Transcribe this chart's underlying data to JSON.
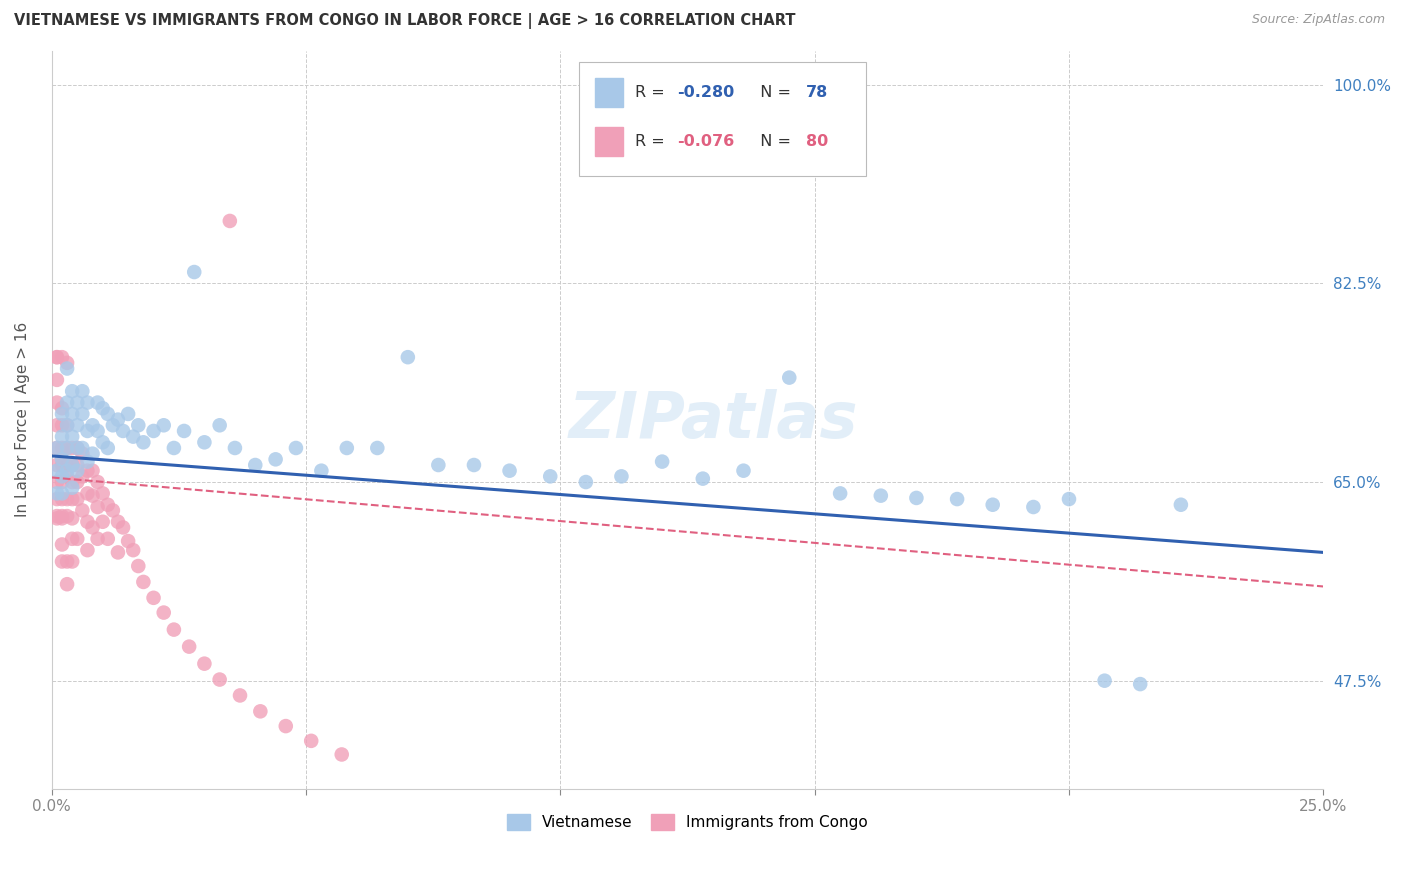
{
  "title": "VIETNAMESE VS IMMIGRANTS FROM CONGO IN LABOR FORCE | AGE > 16 CORRELATION CHART",
  "source": "Source: ZipAtlas.com",
  "ylabel": "In Labor Force | Age > 16",
  "xlim": [
    0.0,
    0.25
  ],
  "ylim": [
    0.38,
    1.03
  ],
  "R_vietnamese": -0.28,
  "N_vietnamese": 78,
  "R_congo": -0.076,
  "N_congo": 80,
  "blue_color": "#a8c8e8",
  "pink_color": "#f0a0b8",
  "blue_line_color": "#3060b0",
  "pink_line_color": "#e06080",
  "watermark": "ZIPatlas",
  "background_color": "#ffffff",
  "grid_color": "#cccccc",
  "title_color": "#333333",
  "ytick_color": "#4080c0",
  "viet_line_y0": 0.673,
  "viet_line_y1": 0.588,
  "congo_line_y0": 0.654,
  "congo_line_y1": 0.558,
  "viet_x": [
    0.001,
    0.001,
    0.001,
    0.002,
    0.002,
    0.002,
    0.002,
    0.002,
    0.003,
    0.003,
    0.003,
    0.003,
    0.003,
    0.004,
    0.004,
    0.004,
    0.004,
    0.004,
    0.005,
    0.005,
    0.005,
    0.005,
    0.006,
    0.006,
    0.006,
    0.007,
    0.007,
    0.007,
    0.008,
    0.008,
    0.009,
    0.009,
    0.01,
    0.01,
    0.011,
    0.011,
    0.012,
    0.013,
    0.014,
    0.015,
    0.016,
    0.017,
    0.018,
    0.02,
    0.022,
    0.024,
    0.026,
    0.028,
    0.03,
    0.033,
    0.036,
    0.04,
    0.044,
    0.048,
    0.053,
    0.058,
    0.064,
    0.07,
    0.076,
    0.083,
    0.09,
    0.098,
    0.105,
    0.112,
    0.12,
    0.128,
    0.136,
    0.145,
    0.155,
    0.163,
    0.17,
    0.178,
    0.185,
    0.193,
    0.2,
    0.207,
    0.214,
    0.222
  ],
  "viet_y": [
    0.68,
    0.66,
    0.64,
    0.71,
    0.69,
    0.67,
    0.655,
    0.64,
    0.75,
    0.72,
    0.7,
    0.68,
    0.66,
    0.73,
    0.71,
    0.69,
    0.665,
    0.645,
    0.72,
    0.7,
    0.68,
    0.66,
    0.73,
    0.71,
    0.68,
    0.72,
    0.695,
    0.668,
    0.7,
    0.675,
    0.72,
    0.695,
    0.715,
    0.685,
    0.71,
    0.68,
    0.7,
    0.705,
    0.695,
    0.71,
    0.69,
    0.7,
    0.685,
    0.695,
    0.7,
    0.68,
    0.695,
    0.835,
    0.685,
    0.7,
    0.68,
    0.665,
    0.67,
    0.68,
    0.66,
    0.68,
    0.68,
    0.76,
    0.665,
    0.665,
    0.66,
    0.655,
    0.65,
    0.655,
    0.668,
    0.653,
    0.66,
    0.742,
    0.64,
    0.638,
    0.636,
    0.635,
    0.63,
    0.628,
    0.635,
    0.475,
    0.472,
    0.63
  ],
  "congo_x": [
    0.001,
    0.001,
    0.001,
    0.001,
    0.001,
    0.001,
    0.001,
    0.001,
    0.001,
    0.001,
    0.001,
    0.002,
    0.002,
    0.002,
    0.002,
    0.002,
    0.002,
    0.002,
    0.002,
    0.002,
    0.002,
    0.002,
    0.003,
    0.003,
    0.003,
    0.003,
    0.003,
    0.003,
    0.003,
    0.003,
    0.004,
    0.004,
    0.004,
    0.004,
    0.004,
    0.004,
    0.004,
    0.005,
    0.005,
    0.005,
    0.005,
    0.005,
    0.006,
    0.006,
    0.006,
    0.007,
    0.007,
    0.007,
    0.007,
    0.008,
    0.008,
    0.008,
    0.009,
    0.009,
    0.009,
    0.01,
    0.01,
    0.011,
    0.011,
    0.012,
    0.013,
    0.013,
    0.014,
    0.015,
    0.016,
    0.017,
    0.018,
    0.02,
    0.022,
    0.024,
    0.027,
    0.03,
    0.033,
    0.037,
    0.041,
    0.046,
    0.051,
    0.057,
    0.035,
    0.003
  ],
  "congo_y": [
    0.68,
    0.665,
    0.65,
    0.635,
    0.618,
    0.7,
    0.72,
    0.74,
    0.76,
    0.76,
    0.62,
    0.68,
    0.665,
    0.65,
    0.635,
    0.618,
    0.7,
    0.715,
    0.595,
    0.58,
    0.76,
    0.62,
    0.68,
    0.665,
    0.655,
    0.635,
    0.62,
    0.7,
    0.58,
    0.56,
    0.68,
    0.665,
    0.65,
    0.635,
    0.618,
    0.6,
    0.58,
    0.68,
    0.665,
    0.65,
    0.635,
    0.6,
    0.675,
    0.655,
    0.625,
    0.66,
    0.64,
    0.615,
    0.59,
    0.66,
    0.638,
    0.61,
    0.65,
    0.628,
    0.6,
    0.64,
    0.615,
    0.63,
    0.6,
    0.625,
    0.615,
    0.588,
    0.61,
    0.598,
    0.59,
    0.576,
    0.562,
    0.548,
    0.535,
    0.52,
    0.505,
    0.49,
    0.476,
    0.462,
    0.448,
    0.435,
    0.422,
    0.41,
    0.88,
    0.755
  ]
}
